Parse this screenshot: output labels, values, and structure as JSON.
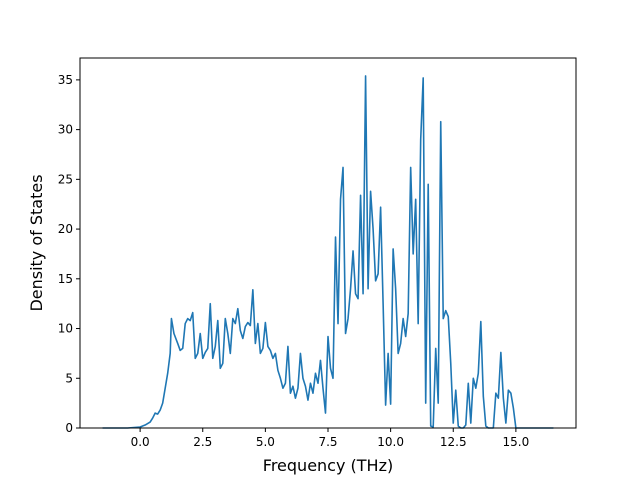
{
  "chart_data": {
    "type": "line",
    "title": "",
    "xlabel": "Frequency (THz)",
    "ylabel": "Density of States",
    "xlim": [
      -2.4,
      17.4
    ],
    "ylim": [
      0,
      37.2
    ],
    "xticks": [
      0.0,
      2.5,
      5.0,
      7.5,
      10.0,
      12.5,
      15.0
    ],
    "xtick_labels": [
      "0.0",
      "2.5",
      "5.0",
      "7.5",
      "10.0",
      "12.5",
      "15.0"
    ],
    "yticks": [
      0,
      5,
      10,
      15,
      20,
      25,
      30,
      35
    ],
    "ytick_labels": [
      "0",
      "5",
      "10",
      "15",
      "20",
      "25",
      "30",
      "35"
    ],
    "grid": false,
    "legend": "none",
    "series": [
      {
        "color": "#1f77b4",
        "x": [
          -1.5,
          -0.5,
          0.0,
          0.2,
          0.4,
          0.5,
          0.6,
          0.7,
          0.8,
          0.9,
          1.0,
          1.1,
          1.2,
          1.25,
          1.35,
          1.5,
          1.6,
          1.7,
          1.8,
          1.9,
          2.0,
          2.1,
          2.2,
          2.3,
          2.4,
          2.5,
          2.6,
          2.7,
          2.8,
          2.9,
          3.0,
          3.1,
          3.2,
          3.3,
          3.4,
          3.5,
          3.6,
          3.7,
          3.8,
          3.9,
          4.0,
          4.1,
          4.2,
          4.3,
          4.4,
          4.5,
          4.6,
          4.7,
          4.8,
          4.9,
          5.0,
          5.1,
          5.2,
          5.3,
          5.4,
          5.5,
          5.6,
          5.7,
          5.8,
          5.9,
          6.0,
          6.1,
          6.2,
          6.3,
          6.4,
          6.5,
          6.6,
          6.7,
          6.8,
          6.9,
          7.0,
          7.1,
          7.2,
          7.3,
          7.4,
          7.5,
          7.6,
          7.7,
          7.8,
          7.9,
          8.0,
          8.1,
          8.2,
          8.3,
          8.4,
          8.5,
          8.6,
          8.7,
          8.8,
          8.9,
          9.0,
          9.1,
          9.2,
          9.3,
          9.4,
          9.5,
          9.6,
          9.7,
          9.8,
          9.9,
          10.0,
          10.1,
          10.2,
          10.3,
          10.4,
          10.5,
          10.6,
          10.7,
          10.8,
          10.9,
          11.0,
          11.1,
          11.2,
          11.3,
          11.4,
          11.5,
          11.6,
          11.7,
          11.8,
          11.9,
          12.0,
          12.1,
          12.2,
          12.3,
          12.4,
          12.5,
          12.6,
          12.7,
          12.8,
          12.9,
          13.0,
          13.1,
          13.2,
          13.3,
          13.4,
          13.5,
          13.6,
          13.7,
          13.8,
          13.9,
          14.0,
          14.1,
          14.2,
          14.3,
          14.4,
          14.5,
          14.6,
          14.7,
          14.8,
          14.9,
          15.0,
          15.1,
          15.5,
          16.5
        ],
        "y": [
          0,
          0,
          0.1,
          0.3,
          0.6,
          1.0,
          1.5,
          1.4,
          1.8,
          2.5,
          4.0,
          5.5,
          7.5,
          11.0,
          9.5,
          8.5,
          7.8,
          8.0,
          10.5,
          11.0,
          10.8,
          11.6,
          7.0,
          7.5,
          9.5,
          7.0,
          7.6,
          8.0,
          12.5,
          7.0,
          8.2,
          10.8,
          6.0,
          6.5,
          11.0,
          9.5,
          7.5,
          11.0,
          10.5,
          12.0,
          9.8,
          9.0,
          10.2,
          10.6,
          10.3,
          13.9,
          8.5,
          10.5,
          7.5,
          8.0,
          10.6,
          8.2,
          7.8,
          7.0,
          7.5,
          5.8,
          5.0,
          4.0,
          4.5,
          8.2,
          3.5,
          4.2,
          3.0,
          4.0,
          7.5,
          5.0,
          4.2,
          2.8,
          4.5,
          3.5,
          5.5,
          4.5,
          6.8,
          4.0,
          1.5,
          9.2,
          6.0,
          5.0,
          19.2,
          10.5,
          23.0,
          26.2,
          9.5,
          11.0,
          14.0,
          17.8,
          13.5,
          13.0,
          23.4,
          13.5,
          35.4,
          14.0,
          23.8,
          20.0,
          14.8,
          15.5,
          22.2,
          12.5,
          2.3,
          7.5,
          2.4,
          18.0,
          14.0,
          7.5,
          8.5,
          11.0,
          9.2,
          11.5,
          26.2,
          17.5,
          23.0,
          10.5,
          29.0,
          35.2,
          2.5,
          24.5,
          0.2,
          0.1,
          8.0,
          2.5,
          30.8,
          11.0,
          11.8,
          11.2,
          6.5,
          0.5,
          3.8,
          0.2,
          0.0,
          0.0,
          0.3,
          4.5,
          0.5,
          5.0,
          4.0,
          5.5,
          10.7,
          3.2,
          0.2,
          0.0,
          0.0,
          0.0,
          3.5,
          3.0,
          7.6,
          3.0,
          0.5,
          3.8,
          3.5,
          2.0,
          0.0,
          0.0,
          0.0,
          0.0
        ]
      }
    ]
  }
}
